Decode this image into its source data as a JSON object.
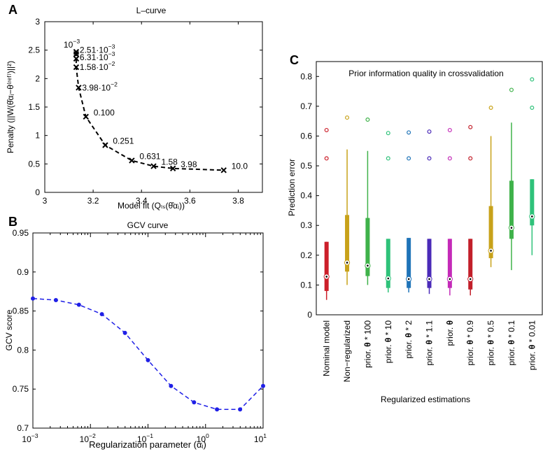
{
  "panels": {
    "a_letter": "A",
    "b_letter": "B",
    "c_letter": "C"
  },
  "chart_data": [
    {
      "id": "A",
      "type": "line",
      "title": "L–curve",
      "xlabel": "Model fit (Qₗₛ(θ̂αᵢ))",
      "ylabel": "Penalty (||W(θ̂αᵢ−θ⁽ʳᵉᶠ⁾)||²)",
      "xlim": [
        3,
        3.9
      ],
      "ylim": [
        0,
        3
      ],
      "xticks": [
        "3",
        "3.2",
        "3.4",
        "3.6",
        "3.8"
      ],
      "yticks": [
        "0",
        "0.5",
        "1",
        "1.5",
        "2",
        "2.5",
        "3"
      ],
      "line_style": "dashed",
      "marker": "x",
      "color": "#000000",
      "points": [
        {
          "x": 3.13,
          "y": 2.47,
          "label_base": "10",
          "label_exp": "−3"
        },
        {
          "x": 3.13,
          "y": 2.43,
          "label_base": "2.51·10",
          "label_exp": "−3"
        },
        {
          "x": 3.13,
          "y": 2.35,
          "label_base": "6.31·10",
          "label_exp": "−3"
        },
        {
          "x": 3.13,
          "y": 2.2,
          "label_base": "1.58·10",
          "label_exp": "−2"
        },
        {
          "x": 3.14,
          "y": 1.84,
          "label_base": "3.98·10",
          "label_exp": "−2"
        },
        {
          "x": 3.17,
          "y": 1.33,
          "label_base": "0.100",
          "label_exp": ""
        },
        {
          "x": 3.25,
          "y": 0.83,
          "label_base": "0.251",
          "label_exp": ""
        },
        {
          "x": 3.36,
          "y": 0.56,
          "label_base": "0.631",
          "label_exp": ""
        },
        {
          "x": 3.45,
          "y": 0.46,
          "label_base": "1.58",
          "label_exp": ""
        },
        {
          "x": 3.53,
          "y": 0.42,
          "label_base": "3.98",
          "label_exp": ""
        },
        {
          "x": 3.74,
          "y": 0.39,
          "label_base": "10.0",
          "label_exp": ""
        }
      ]
    },
    {
      "id": "B",
      "type": "line",
      "title": "GCV curve",
      "xlabel": "Regularization parameter (αᵢ)",
      "ylabel": "GCV score",
      "xscale": "log",
      "xlim": [
        0.001,
        10
      ],
      "ylim": [
        0.7,
        0.95
      ],
      "xticks": [
        {
          "base": "10",
          "exp": "−3"
        },
        {
          "base": "10",
          "exp": "−2"
        },
        {
          "base": "10",
          "exp": "−1"
        },
        {
          "base": "10",
          "exp": "0"
        },
        {
          "base": "10",
          "exp": "1"
        }
      ],
      "yticks": [
        "0.7",
        "0.75",
        "0.8",
        "0.85",
        "0.9",
        "0.95"
      ],
      "line_style": "dashed",
      "marker": "dot",
      "color": "#1f1fe6",
      "x": [
        0.001,
        0.00251,
        0.00631,
        0.0158,
        0.0398,
        0.1,
        0.251,
        0.631,
        1.58,
        3.98,
        10
      ],
      "y": [
        0.866,
        0.864,
        0.858,
        0.846,
        0.822,
        0.787,
        0.754,
        0.733,
        0.724,
        0.724,
        0.754
      ]
    },
    {
      "id": "C",
      "type": "box",
      "title": "Prior information quality in crossvalidation",
      "xlabel": "Regularized estimations",
      "ylabel": "Prediction error",
      "ylim": [
        0,
        0.85
      ],
      "yticks": [
        "0",
        "0.1",
        "0.2",
        "0.3",
        "0.4",
        "0.5",
        "0.6",
        "0.7",
        "0.8"
      ],
      "categories": [
        {
          "text": "Nominal model",
          "bold": "",
          "rest": ""
        },
        {
          "text": "Non−regularized",
          "bold": "",
          "rest": ""
        },
        {
          "text": "prior. ",
          "bold": "θ",
          "rest": " * 100"
        },
        {
          "text": "prior. ",
          "bold": "θ",
          "rest": " * 10"
        },
        {
          "text": "prior. ",
          "bold": "θ",
          "rest": " * 2"
        },
        {
          "text": "prior. ",
          "bold": "θ",
          "rest": " * 1.1"
        },
        {
          "text": "prior. ",
          "bold": "θ",
          "rest": ""
        },
        {
          "text": "prior. ",
          "bold": "θ",
          "rest": " * 0.9"
        },
        {
          "text": "prior. ",
          "bold": "θ",
          "rest": " * 0.5"
        },
        {
          "text": "prior. ",
          "bold": "θ",
          "rest": " * 0.1"
        },
        {
          "text": "prior. ",
          "bold": "θ",
          "rest": " * 0.01"
        }
      ],
      "boxes": [
        {
          "color": "#cc1f2a",
          "wmin": 0.05,
          "q1": 0.08,
          "median": 0.128,
          "q3": 0.245,
          "wmax": 0.245,
          "outliers": [
            0.525,
            0.62
          ]
        },
        {
          "color": "#c8a21a",
          "wmin": 0.1,
          "q1": 0.145,
          "median": 0.175,
          "q3": 0.335,
          "wmax": 0.555,
          "outliers": [
            0.662
          ]
        },
        {
          "color": "#3fb24a",
          "wmin": 0.1,
          "q1": 0.13,
          "median": 0.165,
          "q3": 0.325,
          "wmax": 0.55,
          "outliers": [
            0.655
          ]
        },
        {
          "color": "#2fc27a",
          "wmin": 0.075,
          "q1": 0.09,
          "median": 0.122,
          "q3": 0.255,
          "wmax": 0.255,
          "outliers": [
            0.525,
            0.61
          ]
        },
        {
          "color": "#1f74b8",
          "wmin": 0.075,
          "q1": 0.09,
          "median": 0.12,
          "q3": 0.258,
          "wmax": 0.258,
          "outliers": [
            0.525,
            0.612
          ]
        },
        {
          "color": "#4a2ab8",
          "wmin": 0.07,
          "q1": 0.09,
          "median": 0.12,
          "q3": 0.255,
          "wmax": 0.255,
          "outliers": [
            0.525,
            0.615
          ]
        },
        {
          "color": "#c42ab8",
          "wmin": 0.065,
          "q1": 0.09,
          "median": 0.12,
          "q3": 0.255,
          "wmax": 0.255,
          "outliers": [
            0.525,
            0.62
          ]
        },
        {
          "color": "#c21f2a",
          "wmin": 0.065,
          "q1": 0.085,
          "median": 0.12,
          "q3": 0.255,
          "wmax": 0.255,
          "outliers": [
            0.525,
            0.63
          ]
        },
        {
          "color": "#c8a21a",
          "wmin": 0.16,
          "q1": 0.19,
          "median": 0.215,
          "q3": 0.365,
          "wmax": 0.6,
          "outliers": [
            0.695
          ]
        },
        {
          "color": "#3fb24a",
          "wmin": 0.15,
          "q1": 0.255,
          "median": 0.292,
          "q3": 0.45,
          "wmax": 0.645,
          "outliers": [
            0.755
          ]
        },
        {
          "color": "#2fc27a",
          "wmin": 0.2,
          "q1": 0.3,
          "median": 0.33,
          "q3": 0.455,
          "wmax": 0.455,
          "outliers": [
            0.695,
            0.79
          ]
        }
      ]
    }
  ]
}
